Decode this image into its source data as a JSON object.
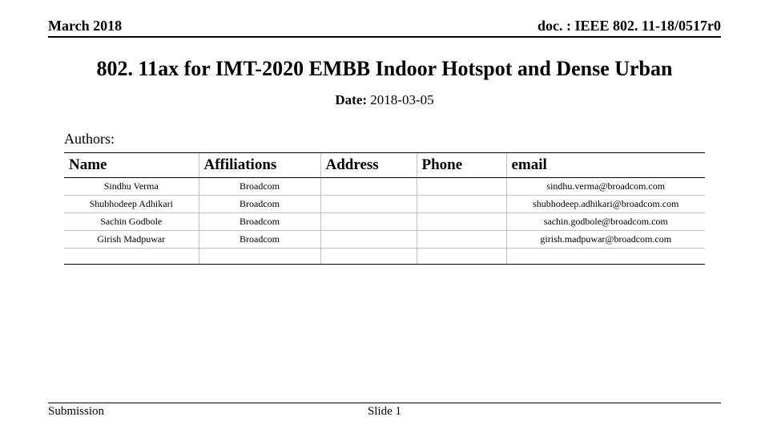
{
  "header": {
    "left": "March 2018",
    "right": "doc. : IEEE 802. 11-18/0517r0"
  },
  "title": "802. 11ax for IMT-2020 EMBB Indoor Hotspot and Dense Urban",
  "date": {
    "label": "Date:",
    "value": "2018-03-05"
  },
  "authors_label": "Authors:",
  "table": {
    "columns": [
      "Name",
      "Affiliations",
      "Address",
      "Phone",
      "email"
    ],
    "col_widths_pct": [
      21,
      19,
      15,
      14,
      31
    ],
    "rows": [
      {
        "name": "Sindhu Verma",
        "affil": "Broadcom",
        "address": "",
        "phone": "",
        "email": "sindhu.verma@broadcom.com"
      },
      {
        "name": "Shubhodeep Adhikari",
        "affil": "Broadcom",
        "address": "",
        "phone": "",
        "email": "shubhodeep.adhikari@broadcom.com"
      },
      {
        "name": "Sachin Godbole",
        "affil": "Broadcom",
        "address": "",
        "phone": "",
        "email": "sachin.godbole@broadcom.com"
      },
      {
        "name": "Girish Madpuwar",
        "affil": "Broadcom",
        "address": "",
        "phone": "",
        "email": "girish.madpuwar@broadcom.com"
      },
      {
        "name": "",
        "affil": "",
        "address": "",
        "phone": "",
        "email": ""
      }
    ]
  },
  "footer": {
    "left": "Submission",
    "center": "Slide 1"
  },
  "style": {
    "background_color": "#ffffff",
    "text_color": "#000000",
    "rule_color": "#000000",
    "cell_border_color": "#bfbfbf",
    "title_fontsize_pt": 26,
    "header_fontsize_pt": 18,
    "th_fontsize_pt": 19,
    "td_fontsize_pt": 12,
    "footer_fontsize_pt": 15
  }
}
